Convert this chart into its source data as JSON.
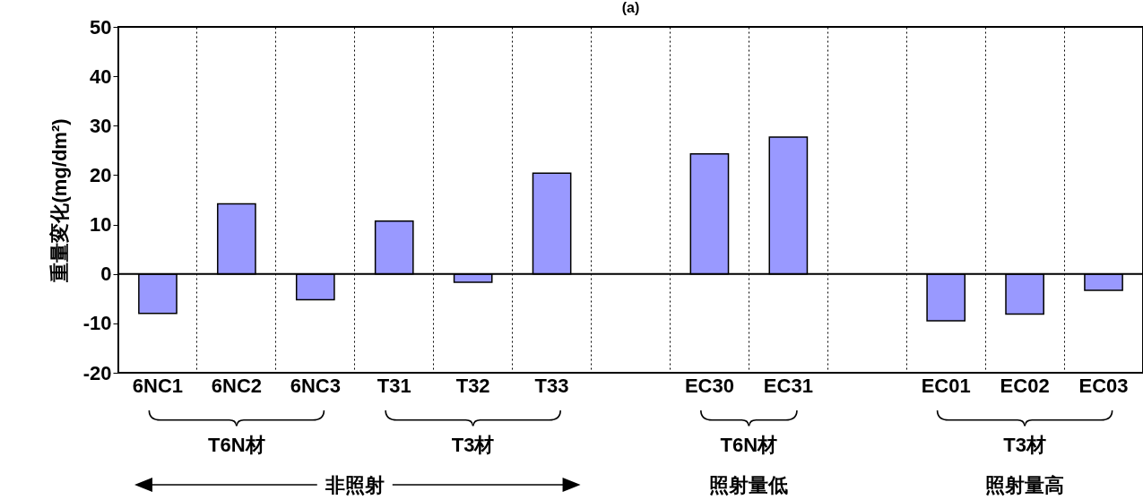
{
  "chart_data": {
    "type": "bar",
    "title": "(a)",
    "ylabel": "重量変化(mg/dm²)",
    "categories": [
      "6NC1",
      "6NC2",
      "6NC3",
      "T31",
      "T32",
      "T33",
      null,
      "EC30",
      "EC31",
      null,
      "EC01",
      "EC02",
      "EC03"
    ],
    "series": [
      {
        "color": "#9999ff",
        "values": [
          -8.0,
          14.2,
          -5.2,
          10.7,
          -1.7,
          20.4,
          null,
          24.3,
          27.7,
          null,
          -9.5,
          -8.1,
          -3.3
        ]
      }
    ],
    "ylim": [
      -20,
      50
    ],
    "yticks": [
      -20,
      -10,
      0,
      10,
      20,
      30,
      40,
      50
    ],
    "grid": "x",
    "ref_lines": [
      {
        "axis": "y",
        "value": 0,
        "color": "#000000"
      }
    ],
    "annotations": [
      "T6N材",
      "T3材",
      "T6N材",
      "T3材",
      "非照射",
      "照射量低",
      "照射量高"
    ]
  }
}
